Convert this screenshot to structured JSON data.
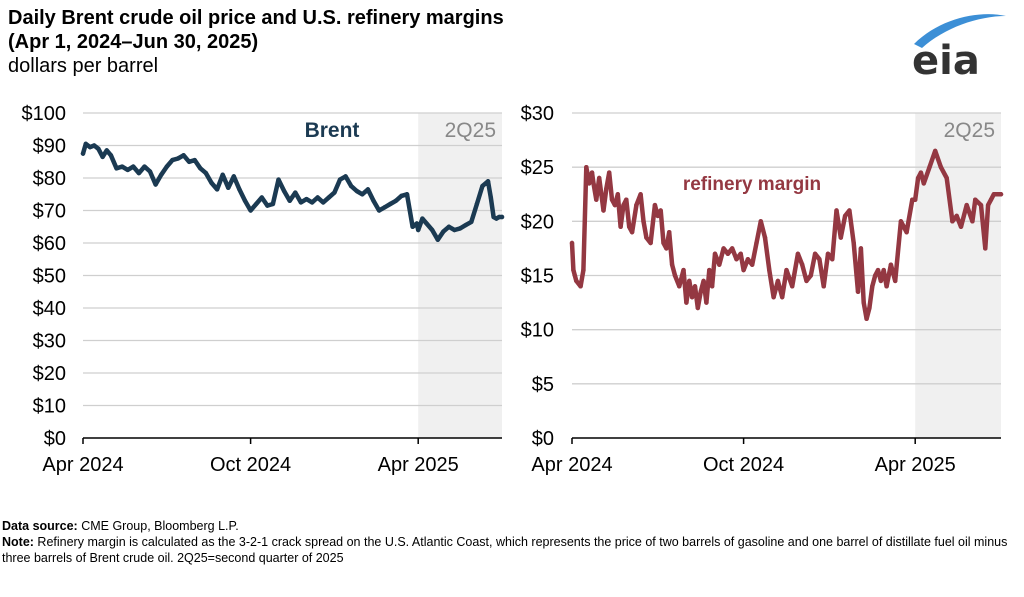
{
  "header": {
    "title_line1": "Daily Brent crude oil price and U.S. refinery margins",
    "title_line2": "(Apr 1, 2024–Jun 30, 2025)",
    "units": "dollars per barrel",
    "logo_text": "eia"
  },
  "footer": {
    "source_label": "Data source:",
    "source_text": " CME Group, Bloomberg L.P.",
    "note_label": "Note:",
    "note_text": " Refinery margin is calculated as the 3-2-1 crack spread on the U.S. Atlantic Coast, which represents the price of two barrels of gasoline and one barrel of distillate fuel oil minus three barrels of Brent crude oil. 2Q25=second quarter of 2025"
  },
  "colors": {
    "brent": "#1b3a52",
    "margin": "#943842",
    "shade": "#f0f0f0",
    "grid": "#cfcfcf",
    "logo_arc": "#3c8fd6",
    "logo_text": "#333333"
  },
  "chart_data": [
    {
      "type": "line",
      "title": "Brent",
      "series_label": "Brent",
      "shade_label": "2Q25",
      "shade_range": [
        "2025-04-01",
        "2025-06-30"
      ],
      "xlabel": "",
      "ylabel": "dollars per barrel",
      "x_range": [
        "2024-04-01",
        "2025-06-30"
      ],
      "x_ticks": [
        "Apr 2024",
        "Oct 2024",
        "Apr 2025"
      ],
      "ylim": [
        0,
        100
      ],
      "y_ticks": [
        "$0",
        "$10",
        "$20",
        "$30",
        "$40",
        "$50",
        "$60",
        "$70",
        "$80",
        "$90",
        "$100"
      ],
      "y_tick_values": [
        0,
        10,
        20,
        30,
        40,
        50,
        60,
        70,
        80,
        90,
        100
      ],
      "grid": true,
      "x_months": [
        0,
        0.1,
        0.25,
        0.4,
        0.55,
        0.7,
        0.85,
        1.0,
        1.2,
        1.4,
        1.6,
        1.8,
        2.0,
        2.2,
        2.4,
        2.6,
        2.8,
        3.0,
        3.2,
        3.4,
        3.6,
        3.8,
        4.0,
        4.2,
        4.4,
        4.6,
        4.8,
        5.0,
        5.2,
        5.4,
        5.6,
        5.8,
        6.0,
        6.2,
        6.4,
        6.6,
        6.8,
        7.0,
        7.2,
        7.4,
        7.6,
        7.8,
        8.0,
        8.2,
        8.4,
        8.6,
        8.8,
        9.0,
        9.2,
        9.4,
        9.6,
        9.8,
        10.0,
        10.2,
        10.4,
        10.6,
        10.8,
        11.0,
        11.2,
        11.4,
        11.6,
        11.8,
        11.95,
        12.0,
        12.15,
        12.3,
        12.5,
        12.7,
        12.9,
        13.1,
        13.3,
        13.5,
        13.7,
        13.9,
        14.1,
        14.3,
        14.5,
        14.6,
        14.7,
        14.8,
        14.9,
        15.0
      ],
      "values": [
        87.5,
        90.5,
        89.5,
        90,
        89,
        86.5,
        88.5,
        87,
        83,
        83.5,
        82.5,
        83.5,
        81.5,
        83.5,
        82,
        78,
        81,
        83.5,
        85.5,
        86,
        87,
        85,
        85.5,
        83,
        81.5,
        78.5,
        76.5,
        81,
        77,
        80.5,
        76.5,
        73,
        70,
        72,
        74,
        71.5,
        72,
        79.5,
        76,
        73,
        75.5,
        72.5,
        73.5,
        72.5,
        74,
        72.5,
        74,
        75.5,
        79.5,
        80.5,
        77.5,
        76,
        75,
        76.5,
        73,
        70,
        71,
        72,
        73,
        74.5,
        75,
        65,
        66,
        64,
        67.5,
        66,
        64,
        61,
        63.5,
        65,
        64,
        64.5,
        65.5,
        66.5,
        72,
        77.5,
        79,
        74,
        68,
        67.5,
        68,
        68
      ]
    },
    {
      "type": "line",
      "title": "refinery margin",
      "series_label": "refinery margin",
      "shade_label": "2Q25",
      "shade_range": [
        "2025-04-01",
        "2025-06-30"
      ],
      "xlabel": "",
      "ylabel": "dollars per barrel",
      "x_range": [
        "2024-04-01",
        "2025-06-30"
      ],
      "x_ticks": [
        "Apr 2024",
        "Oct 2024",
        "Apr 2025"
      ],
      "ylim": [
        0,
        30
      ],
      "y_ticks": [
        "$0",
        "$5",
        "$10",
        "$15",
        "$20",
        "$25",
        "$30"
      ],
      "y_tick_values": [
        0,
        5,
        10,
        15,
        20,
        25,
        30
      ],
      "grid": true,
      "x_months": [
        0,
        0.05,
        0.15,
        0.3,
        0.4,
        0.5,
        0.6,
        0.7,
        0.75,
        0.85,
        0.95,
        1.1,
        1.2,
        1.3,
        1.4,
        1.5,
        1.6,
        1.7,
        1.8,
        1.9,
        2.0,
        2.1,
        2.25,
        2.4,
        2.5,
        2.6,
        2.75,
        2.9,
        3.0,
        3.1,
        3.2,
        3.3,
        3.4,
        3.5,
        3.6,
        3.75,
        3.9,
        4.0,
        4.1,
        4.2,
        4.3,
        4.4,
        4.5,
        4.6,
        4.7,
        4.8,
        4.9,
        5.0,
        5.15,
        5.3,
        5.45,
        5.6,
        5.75,
        5.9,
        6.0,
        6.15,
        6.3,
        6.45,
        6.6,
        6.75,
        6.9,
        7.05,
        7.2,
        7.35,
        7.5,
        7.7,
        7.9,
        8.05,
        8.2,
        8.35,
        8.5,
        8.65,
        8.8,
        8.95,
        9.1,
        9.25,
        9.4,
        9.55,
        9.7,
        9.85,
        10.0,
        10.1,
        10.2,
        10.3,
        10.4,
        10.5,
        10.6,
        10.7,
        10.8,
        10.9,
        11.0,
        11.15,
        11.3,
        11.5,
        11.7,
        11.9,
        12.0,
        12.1,
        12.2,
        12.3,
        12.5,
        12.7,
        12.9,
        13.1,
        13.3,
        13.45,
        13.6,
        13.8,
        14.0,
        14.1,
        14.3,
        14.45,
        14.55,
        14.65,
        14.75,
        14.85,
        14.95,
        15.0
      ],
      "values": [
        18,
        15.5,
        14.5,
        14,
        15.5,
        25,
        23.5,
        24.5,
        23.5,
        22,
        24,
        21,
        23,
        24.5,
        22,
        21.5,
        22.5,
        19.5,
        21.5,
        22,
        19.5,
        19,
        21.5,
        22.5,
        20,
        18.5,
        18,
        21.5,
        20.5,
        21,
        18,
        17.5,
        19,
        16,
        15,
        14,
        15.5,
        12.5,
        14.5,
        13,
        14,
        12,
        13.5,
        14.5,
        12.5,
        15.5,
        14,
        17,
        16,
        17.5,
        17,
        17.5,
        16.5,
        17,
        15.5,
        16.5,
        16,
        18,
        20,
        18.5,
        15.5,
        13,
        14.5,
        13,
        15.5,
        14,
        17,
        16,
        14.5,
        15,
        17,
        16.5,
        14,
        17,
        16.5,
        21,
        18.5,
        20.5,
        21,
        18,
        13.5,
        17.5,
        12.5,
        11,
        12,
        14,
        15,
        15.5,
        14.5,
        15.5,
        14,
        16,
        14.5,
        20,
        19,
        22,
        22,
        24,
        24.5,
        23.5,
        25,
        26.5,
        25,
        24,
        20,
        20.5,
        19.5,
        21.5,
        20,
        22,
        21.5,
        17.5,
        21.5,
        22,
        22.5,
        22.5,
        22.5,
        22.5
      ]
    }
  ]
}
